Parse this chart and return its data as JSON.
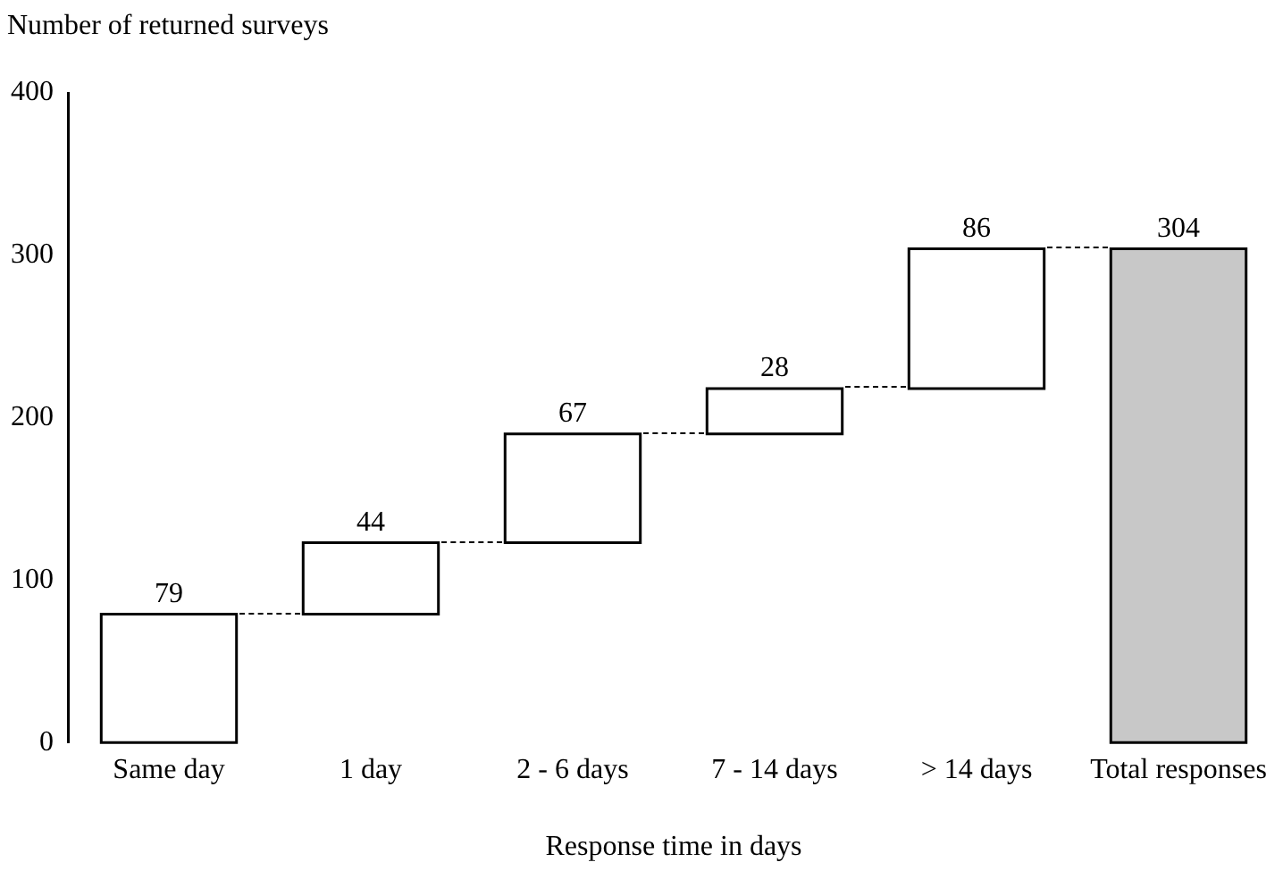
{
  "chart_data": {
    "type": "bar",
    "ylabel": "Number of returned surveys",
    "xlabel": "Response time in days",
    "categories": [
      "Same day",
      "1 day",
      "2 - 6 days",
      "7 - 14 days",
      "> 14 days",
      "Total responses"
    ],
    "values": [
      79,
      44,
      67,
      28,
      86,
      304
    ],
    "base": [
      0,
      79,
      123,
      190,
      218,
      0
    ],
    "colors": [
      "#ffffff",
      "#ffffff",
      "#ffffff",
      "#ffffff",
      "#ffffff",
      "#c8c8c8"
    ],
    "ylim": [
      0,
      400
    ],
    "yticks": [
      0,
      100,
      200,
      300,
      400
    ],
    "data_labels": true,
    "grid": false,
    "legend": false
  }
}
